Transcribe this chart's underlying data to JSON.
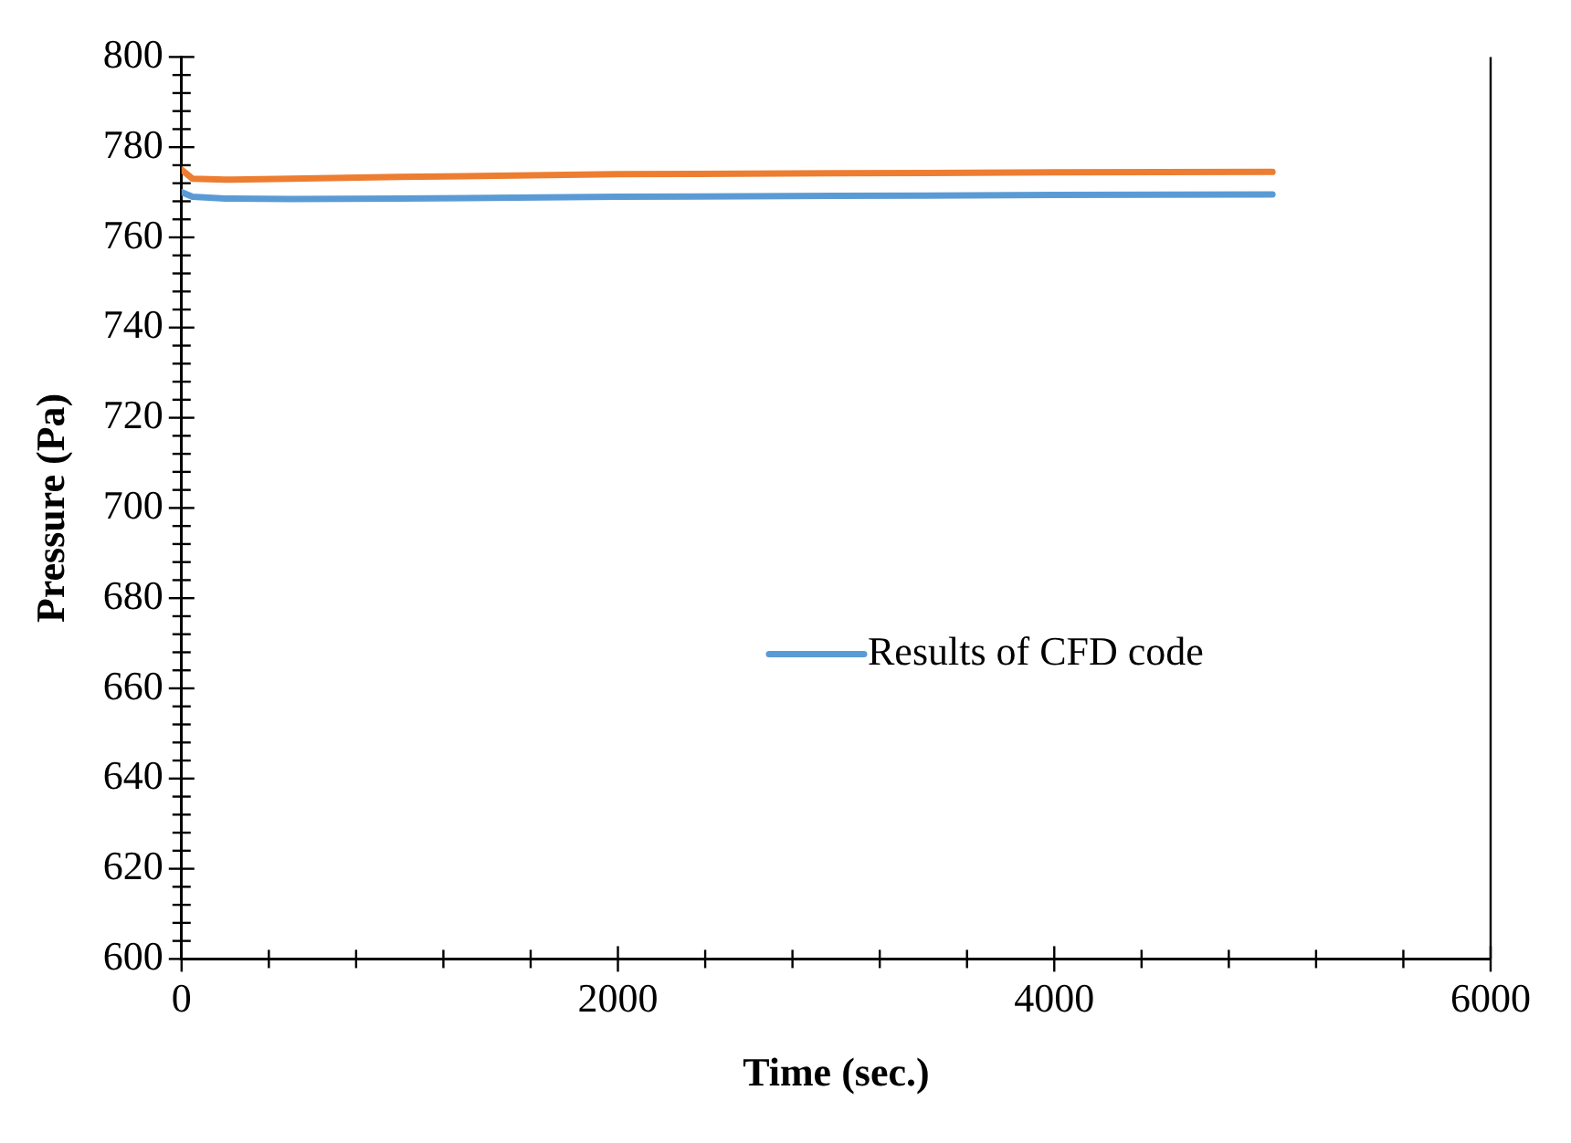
{
  "chart_data": {
    "type": "line",
    "xlabel": "Time (sec.)",
    "ylabel": "Pressure (Pa)",
    "xlim": [
      0,
      6000
    ],
    "ylim": [
      600,
      800
    ],
    "xticks": [
      0,
      {
        "value": 400,
        "label": null
      },
      {
        "value": 800,
        "label": null
      },
      {
        "value": 1200,
        "label": null
      },
      {
        "value": 1600,
        "label": null
      },
      2000,
      {
        "value": 2400,
        "label": null
      },
      {
        "value": 2800,
        "label": null
      },
      {
        "value": 3200,
        "label": null
      },
      {
        "value": 3600,
        "label": null
      },
      4000,
      {
        "value": 4400,
        "label": null
      },
      {
        "value": 4800,
        "label": null
      },
      {
        "value": 5200,
        "label": null
      },
      {
        "value": 5600,
        "label": null
      },
      6000
    ],
    "yticks": [
      600,
      {
        "value": 604,
        "label": null
      },
      {
        "value": 608,
        "label": null
      },
      {
        "value": 612,
        "label": null
      },
      {
        "value": 616,
        "label": null
      },
      620,
      {
        "value": 624,
        "label": null
      },
      {
        "value": 628,
        "label": null
      },
      {
        "value": 632,
        "label": null
      },
      {
        "value": 636,
        "label": null
      },
      640,
      {
        "value": 644,
        "label": null
      },
      {
        "value": 648,
        "label": null
      },
      {
        "value": 652,
        "label": null
      },
      {
        "value": 656,
        "label": null
      },
      660,
      {
        "value": 664,
        "label": null
      },
      {
        "value": 668,
        "label": null
      },
      {
        "value": 672,
        "label": null
      },
      {
        "value": 676,
        "label": null
      },
      680,
      {
        "value": 684,
        "label": null
      },
      {
        "value": 688,
        "label": null
      },
      {
        "value": 692,
        "label": null
      },
      {
        "value": 696,
        "label": null
      },
      700,
      {
        "value": 704,
        "label": null
      },
      {
        "value": 708,
        "label": null
      },
      {
        "value": 712,
        "label": null
      },
      {
        "value": 716,
        "label": null
      },
      720,
      {
        "value": 724,
        "label": null
      },
      {
        "value": 728,
        "label": null
      },
      {
        "value": 732,
        "label": null
      },
      {
        "value": 736,
        "label": null
      },
      740,
      {
        "value": 744,
        "label": null
      },
      {
        "value": 748,
        "label": null
      },
      {
        "value": 752,
        "label": null
      },
      {
        "value": 756,
        "label": null
      },
      760,
      {
        "value": 764,
        "label": null
      },
      {
        "value": 768,
        "label": null
      },
      {
        "value": 772,
        "label": null
      },
      {
        "value": 776,
        "label": null
      },
      780,
      {
        "value": 784,
        "label": null
      },
      {
        "value": 788,
        "label": null
      },
      {
        "value": 792,
        "label": null
      },
      {
        "value": 796,
        "label": null
      },
      800
    ],
    "x": [
      0,
      50,
      200,
      500,
      1000,
      2000,
      3000,
      4000,
      5000
    ],
    "series": [
      {
        "color": "#ed7d31",
        "values": [
          775,
          773,
          772.8,
          773,
          773.4,
          774,
          774.2,
          774.4,
          774.5
        ]
      },
      {
        "name": "Results of CFD code",
        "color": "#5b9bd5",
        "values": [
          770,
          769,
          768.6,
          768.5,
          768.6,
          769,
          769.2,
          769.4,
          769.5
        ]
      }
    ],
    "legend": "right",
    "grid": false,
    "marker": "none",
    "line_style": "solid"
  }
}
